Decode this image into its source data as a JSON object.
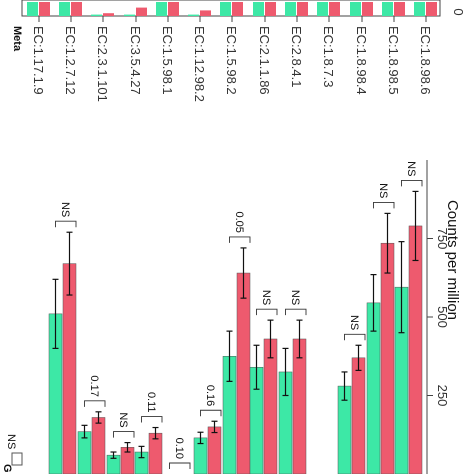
{
  "chart_data": [
    {
      "type": "bar",
      "orientation": "horizontal",
      "rotated_view": true,
      "panel_label": "Meta",
      "categories": [
        "EC:1.17.1.9",
        "EC:1.2.7.12",
        "EC:2.3.1.101",
        "EC:3.5.4.27",
        "EC:1.5.98.1",
        "EC:1.12.98.2",
        "EC:1.5.98.2",
        "EC:2.1.1.86",
        "EC:2.8.4.1",
        "EC:1.8.7.3",
        "EC:1.8.98.4",
        "EC:1.8.98.5",
        "EC:1.8.98.6"
      ],
      "ylabel": "",
      "ytick_labels": [
        "0"
      ],
      "bars": {
        "EC:1.17.1.9": [
          1,
          1
        ],
        "EC:1.2.7.12": [
          1,
          1
        ],
        "EC:2.3.1.101": [
          0.1,
          0.2
        ],
        "EC:3.5.4.27": [
          0.1,
          0.6
        ],
        "EC:1.5.98.1": [
          1,
          1
        ],
        "EC:1.12.98.2": [
          0.1,
          0.4
        ],
        "EC:1.5.98.2": [
          1,
          1
        ],
        "EC:2.1.1.86": [
          1,
          1
        ],
        "EC:2.8.4.1": [
          1,
          1
        ],
        "EC:1.8.7.3": [
          1,
          1
        ],
        "EC:1.8.98.4": [
          1,
          1
        ],
        "EC:1.8.98.5": [
          1,
          1
        ],
        "EC:1.8.98.6": [
          1,
          1
        ]
      }
    },
    {
      "type": "bar",
      "orientation": "horizontal",
      "rotated_view": true,
      "panel_label": "G",
      "ylabel": "Counts per million",
      "ytick_labels": [
        "250",
        "500",
        "750"
      ],
      "ylim": [
        0,
        950
      ],
      "series": [
        {
          "color": "#3de8a6",
          "values": [
            510,
            135,
            60,
            70,
            0,
            0,
            115,
            375,
            340,
            325,
            0,
            280,
            545,
            595
          ],
          "errors": [
            110,
            20,
            10,
            18,
            0,
            0,
            18,
            80,
            70,
            75,
            0,
            45,
            90,
            145
          ]
        },
        {
          "color": "#ee5a6e",
          "values": [
            670,
            180,
            85,
            130,
            0,
            0,
            150,
            640,
            430,
            430,
            0,
            370,
            735,
            790
          ],
          "errors": [
            100,
            18,
            15,
            18,
            0,
            0,
            18,
            80,
            60,
            60,
            0,
            40,
            95,
            110
          ]
        }
      ],
      "significance": [
        "NS",
        "0.17",
        "NS",
        "0.11",
        "0.10",
        "",
        "0.16",
        "0.05",
        "NS",
        "NS",
        "",
        "NS",
        "NS",
        "NS"
      ],
      "legend": {
        "entry_label": "NS"
      }
    }
  ],
  "colors": {
    "group1": "#3de8a6",
    "group2": "#ee5a6e",
    "axis": "#333333"
  }
}
